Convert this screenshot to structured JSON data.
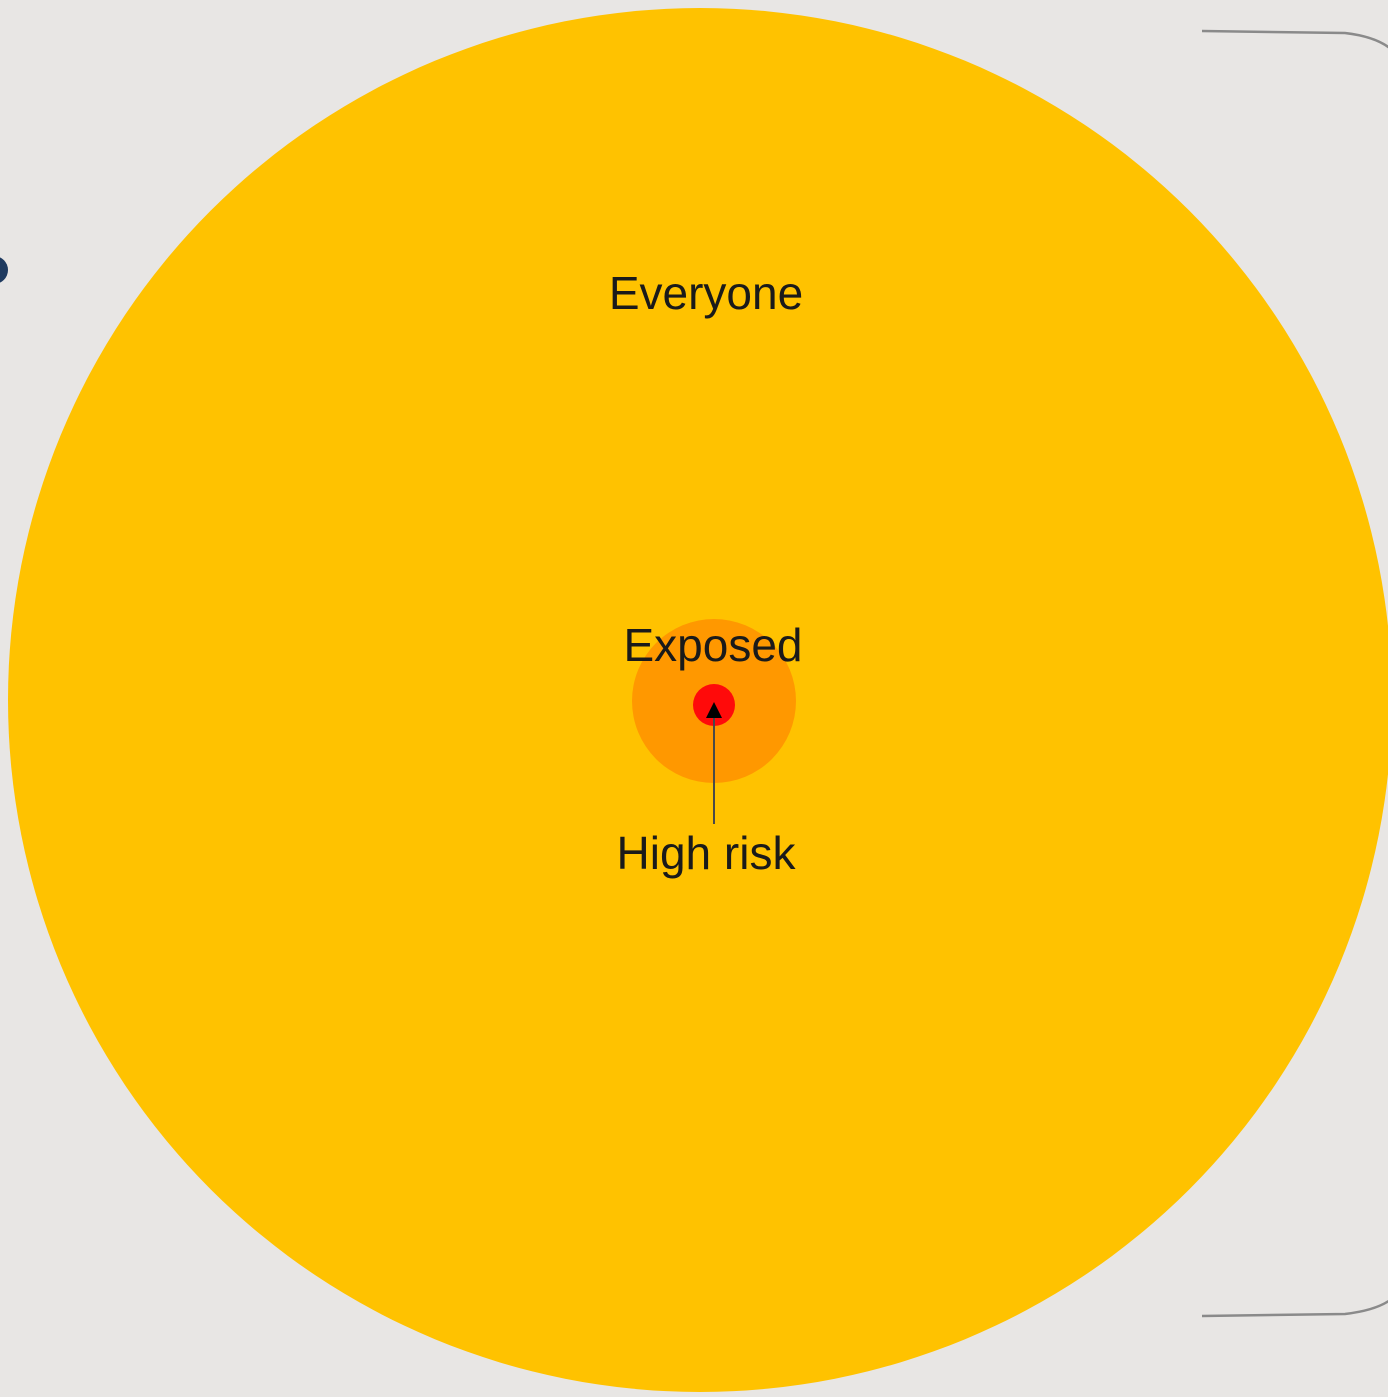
{
  "diagram": {
    "type": "nested-circles",
    "levels": [
      {
        "label": "Everyone",
        "color": "#ffc200"
      },
      {
        "label": "Exposed",
        "color": "#ff9800"
      },
      {
        "label": "High risk",
        "color": "#ff0a0a"
      }
    ],
    "pointer_color": "#4a4a4a",
    "bracket_color": "#8a8a8a",
    "edge_dot_color": "#1e3a5f"
  }
}
